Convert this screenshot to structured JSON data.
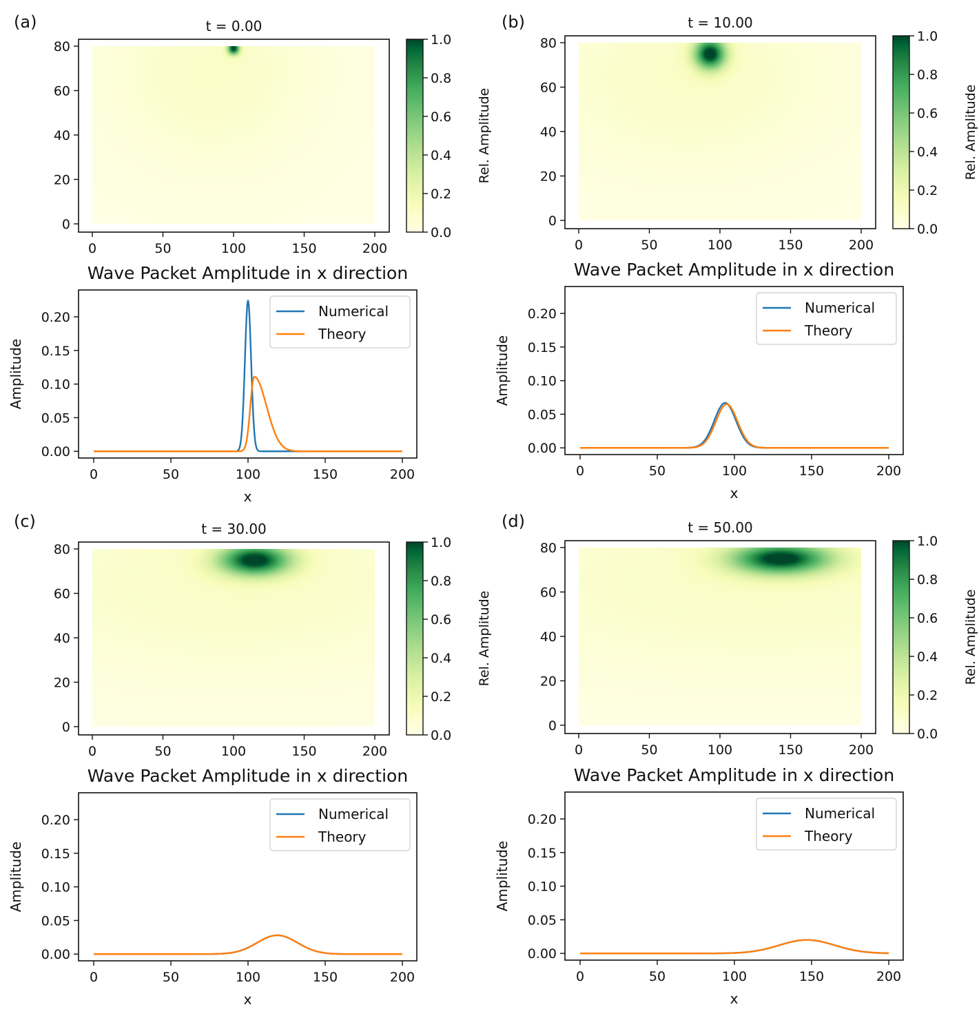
{
  "colors": {
    "numerical": "#1f77b4",
    "theory": "#ff7f0e",
    "cmap_low": "#ffffe5",
    "cmap_mid": "#78c679",
    "cmap_high": "#004529"
  },
  "chart_data": [
    {
      "panel": "(a)",
      "heatmap": {
        "type": "heatmap",
        "title": "t = 0.00",
        "xlim": [
          0,
          200
        ],
        "ylim": [
          0,
          80
        ],
        "xticks": [
          "0",
          "50",
          "100",
          "150",
          "200"
        ],
        "yticks": [
          "0",
          "20",
          "40",
          "60",
          "80"
        ],
        "colorbar": {
          "label": "Rel. Amplitude",
          "range": [
            0.0,
            1.0
          ],
          "ticks": [
            "0.0",
            "0.2",
            "0.4",
            "0.6",
            "0.8",
            "1.0"
          ]
        },
        "peak": {
          "x": 100,
          "y": 79,
          "sx": 3,
          "sy": 2
        }
      },
      "line": {
        "type": "line",
        "title": "Wave Packet Amplitude in x direction",
        "xlabel": "x",
        "ylabel": "Amplitude",
        "xlim": [
          0,
          200
        ],
        "ylim": [
          0,
          0.23
        ],
        "xticks": [
          "0",
          "50",
          "100",
          "150",
          "200"
        ],
        "yticks": [
          "0.00",
          "0.05",
          "0.10",
          "0.15",
          "0.20"
        ],
        "legend": "top-right",
        "series": [
          {
            "name": "Numerical",
            "shape": "gaussian",
            "peak": 0.225,
            "center": 100,
            "width": 2
          },
          {
            "name": "Theory",
            "shape": "skewed",
            "peak": 0.111,
            "center": 104,
            "width_left": 2.5,
            "width_right": 8
          }
        ]
      }
    },
    {
      "panel": "(b)",
      "heatmap": {
        "type": "heatmap",
        "title": "t = 10.00",
        "xlim": [
          0,
          200
        ],
        "ylim": [
          0,
          80
        ],
        "xticks": [
          "0",
          "50",
          "100",
          "150",
          "200"
        ],
        "yticks": [
          "0",
          "20",
          "40",
          "60",
          "80"
        ],
        "colorbar": {
          "label": "Rel. Amplitude",
          "range": [
            0.0,
            1.0
          ],
          "ticks": [
            "0.0",
            "0.2",
            "0.4",
            "0.6",
            "0.8",
            "1.0"
          ]
        },
        "peak": {
          "x": 93,
          "y": 75,
          "sx": 8,
          "sy": 5
        }
      },
      "line": {
        "type": "line",
        "title": "Wave Packet Amplitude in x direction",
        "xlabel": "x",
        "ylabel": "Amplitude",
        "xlim": [
          0,
          200
        ],
        "ylim": [
          0,
          0.23
        ],
        "xticks": [
          "0",
          "50",
          "100",
          "150",
          "200"
        ],
        "yticks": [
          "0.00",
          "0.05",
          "0.10",
          "0.15",
          "0.20"
        ],
        "legend": "top-right",
        "series": [
          {
            "name": "Numerical",
            "shape": "gaussian",
            "peak": 0.067,
            "center": 94,
            "width": 7
          },
          {
            "name": "Theory",
            "shape": "gaussian",
            "peak": 0.065,
            "center": 95,
            "width": 7
          }
        ]
      }
    },
    {
      "panel": "(c)",
      "heatmap": {
        "type": "heatmap",
        "title": "t = 30.00",
        "xlim": [
          0,
          200
        ],
        "ylim": [
          0,
          80
        ],
        "xticks": [
          "0",
          "50",
          "100",
          "150",
          "200"
        ],
        "yticks": [
          "0",
          "20",
          "40",
          "60",
          "80"
        ],
        "colorbar": {
          "label": "Rel. Amplitude",
          "range": [
            0.0,
            1.0
          ],
          "ticks": [
            "0.0",
            "0.2",
            "0.4",
            "0.6",
            "0.8",
            "1.0"
          ]
        },
        "peak": {
          "x": 115,
          "y": 75,
          "sx": 18,
          "sy": 5
        }
      },
      "line": {
        "type": "line",
        "title": "Wave Packet Amplitude in x direction",
        "xlabel": "x",
        "ylabel": "Amplitude",
        "xlim": [
          0,
          200
        ],
        "ylim": [
          0,
          0.23
        ],
        "xticks": [
          "0",
          "50",
          "100",
          "150",
          "200"
        ],
        "yticks": [
          "0.00",
          "0.05",
          "0.10",
          "0.15",
          "0.20"
        ],
        "legend": "top-right",
        "series": [
          {
            "name": "Numerical",
            "shape": "gaussian",
            "peak": 0.028,
            "center": 119,
            "width": 13
          },
          {
            "name": "Theory",
            "shape": "gaussian",
            "peak": 0.028,
            "center": 119,
            "width": 13
          }
        ]
      }
    },
    {
      "panel": "(d)",
      "heatmap": {
        "type": "heatmap",
        "title": "t = 50.00",
        "xlim": [
          0,
          200
        ],
        "ylim": [
          0,
          80
        ],
        "xticks": [
          "0",
          "50",
          "100",
          "150",
          "200"
        ],
        "yticks": [
          "0",
          "20",
          "40",
          "60",
          "80"
        ],
        "colorbar": {
          "label": "Rel. Amplitude",
          "range": [
            0.0,
            1.0
          ],
          "ticks": [
            "0.0",
            "0.2",
            "0.4",
            "0.6",
            "0.8",
            "1.0"
          ]
        },
        "peak": {
          "x": 143,
          "y": 75,
          "sx": 25,
          "sy": 5
        }
      },
      "line": {
        "type": "line",
        "title": "Wave Packet Amplitude in x direction",
        "xlabel": "x",
        "ylabel": "Amplitude",
        "xlim": [
          0,
          200
        ],
        "ylim": [
          0,
          0.23
        ],
        "xticks": [
          "0",
          "50",
          "100",
          "150",
          "200"
        ],
        "yticks": [
          "0.00",
          "0.05",
          "0.10",
          "0.15",
          "0.20"
        ],
        "legend": "top-right",
        "series": [
          {
            "name": "Numerical",
            "shape": "gaussian",
            "peak": 0.02,
            "center": 147,
            "width": 18
          },
          {
            "name": "Theory",
            "shape": "gaussian",
            "peak": 0.02,
            "center": 147,
            "width": 18
          }
        ]
      }
    }
  ]
}
